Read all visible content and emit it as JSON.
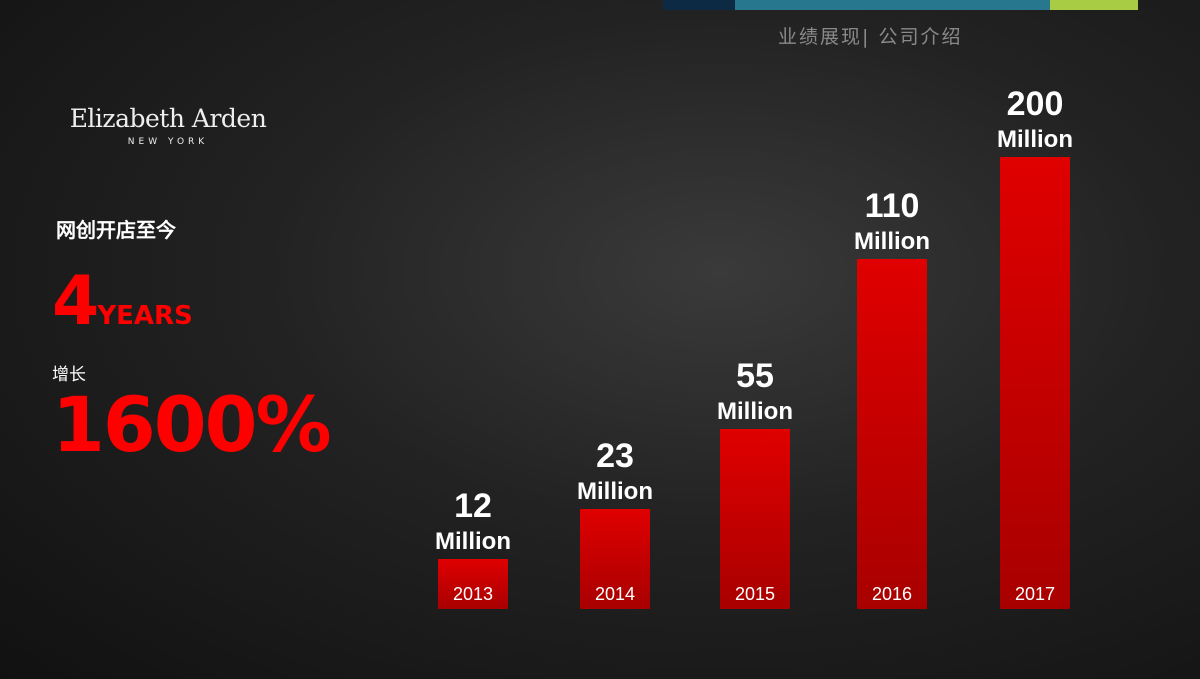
{
  "header": {
    "nav_text": "业绩展现| 公司介绍",
    "bar_colors": [
      "#0d2a45",
      "#27788f",
      "#a8cc44"
    ]
  },
  "logo": {
    "name": "Elizabeth Arden",
    "city": "NEW YORK"
  },
  "summary": {
    "since_label": "网创开店至今",
    "years_number": "4",
    "years_unit": "YEARS",
    "growth_label": "增长",
    "growth_value": "1600%"
  },
  "colors": {
    "accent": "#ff0000",
    "bar": "#d40000"
  },
  "chart_data": {
    "type": "bar",
    "categories": [
      "2013",
      "2014",
      "2015",
      "2016",
      "2017"
    ],
    "values": [
      12,
      23,
      55,
      110,
      200
    ],
    "value_labels": [
      "12",
      "23",
      "55",
      "110",
      "200"
    ],
    "unit_label": "Million",
    "title": "",
    "xlabel": "",
    "ylabel": "",
    "ylim": [
      0,
      200
    ],
    "grid": false
  }
}
